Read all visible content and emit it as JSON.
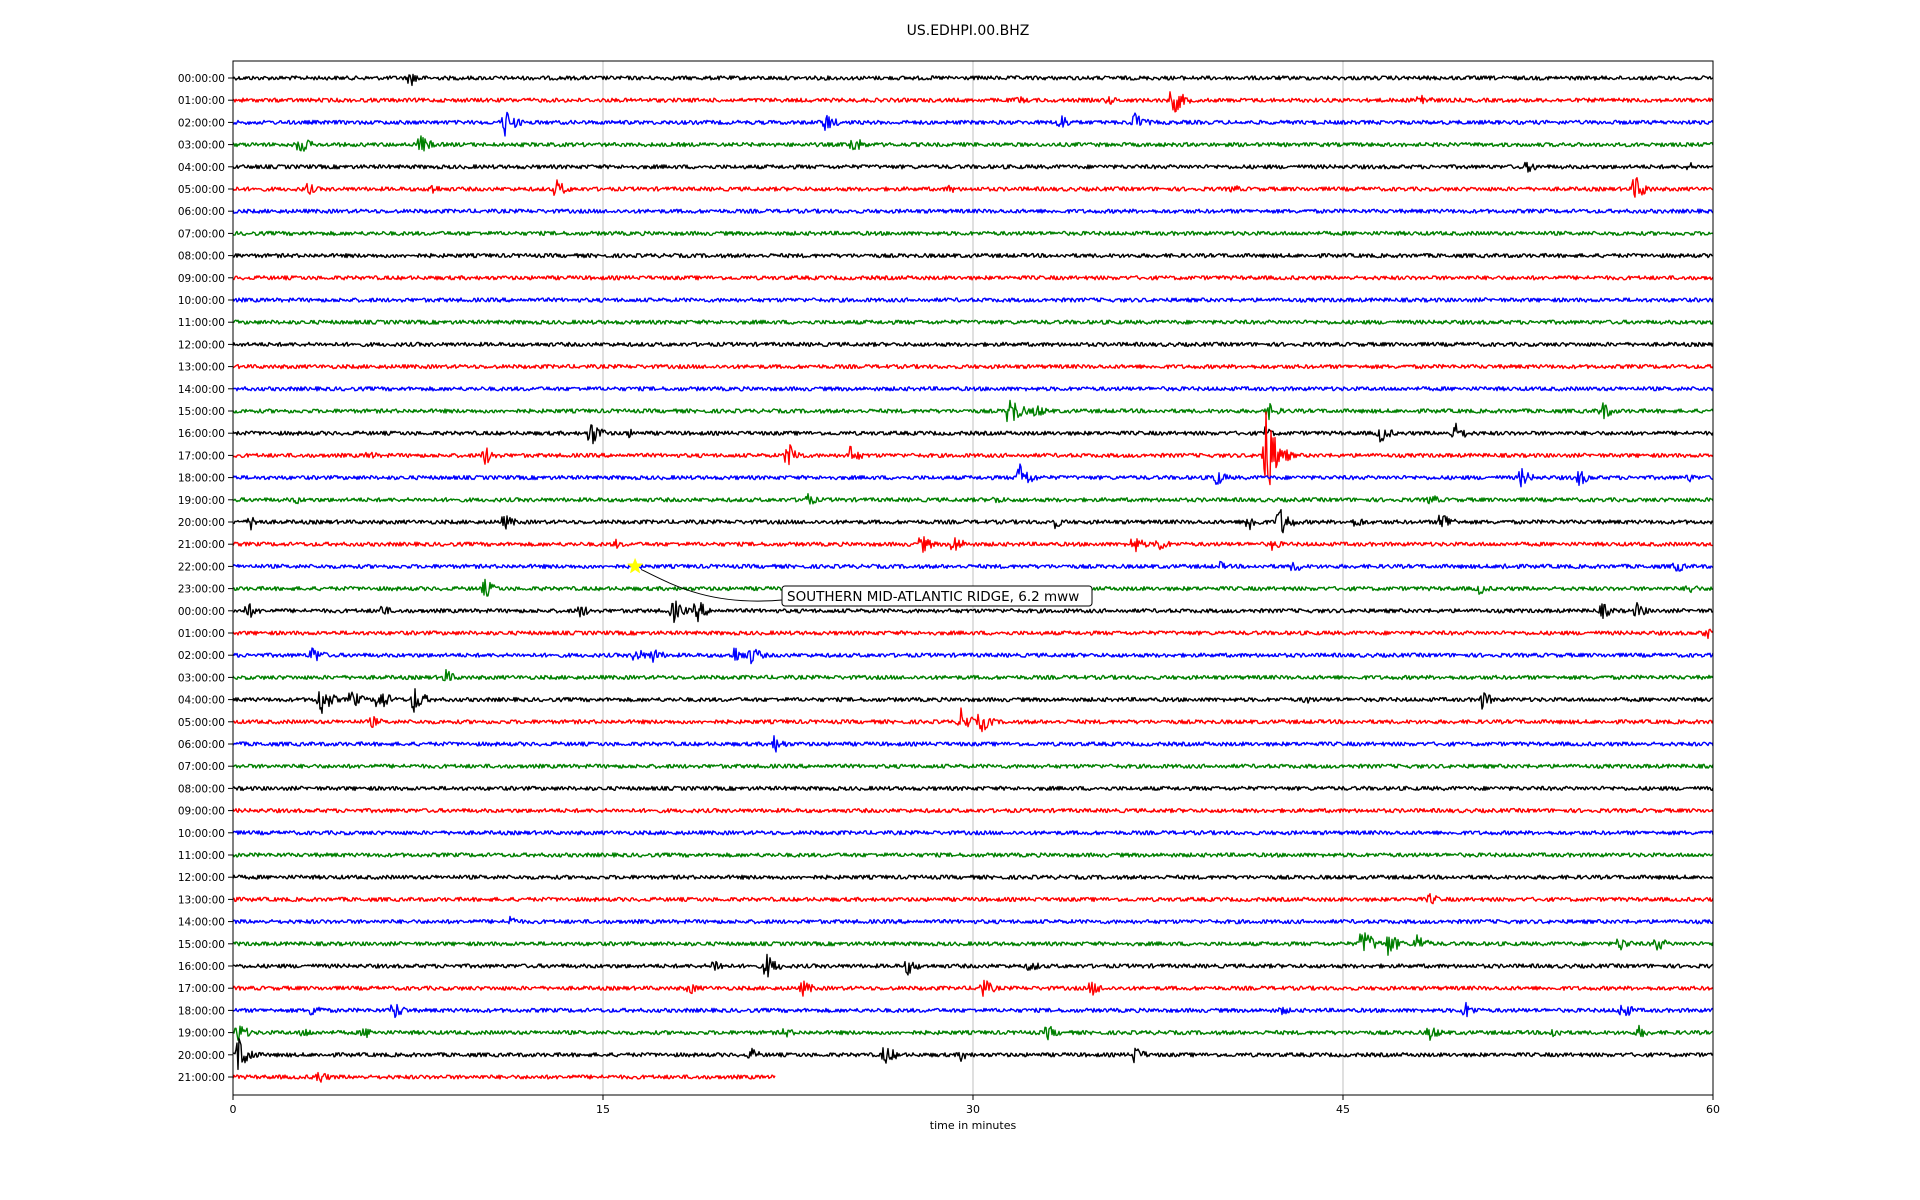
{
  "chart_data": {
    "type": "line",
    "title": "US.EDHPI.00.BHZ",
    "xlabel": "time in minutes",
    "xlim": [
      0,
      60
    ],
    "xticks": [
      0,
      15,
      30,
      45,
      60
    ],
    "grid": "vertical",
    "row_labels": [
      "00:00:00",
      "01:00:00",
      "02:00:00",
      "03:00:00",
      "04:00:00",
      "05:00:00",
      "06:00:00",
      "07:00:00",
      "08:00:00",
      "09:00:00",
      "10:00:00",
      "11:00:00",
      "12:00:00",
      "13:00:00",
      "14:00:00",
      "15:00:00",
      "16:00:00",
      "17:00:00",
      "18:00:00",
      "19:00:00",
      "20:00:00",
      "21:00:00",
      "22:00:00",
      "23:00:00",
      "00:00:00",
      "01:00:00",
      "02:00:00",
      "03:00:00",
      "04:00:00",
      "05:00:00",
      "06:00:00",
      "07:00:00",
      "08:00:00",
      "09:00:00",
      "10:00:00",
      "11:00:00",
      "12:00:00",
      "13:00:00",
      "14:00:00",
      "15:00:00",
      "16:00:00",
      "17:00:00",
      "18:00:00",
      "19:00:00",
      "20:00:00",
      "21:00:00"
    ],
    "trace_colors": [
      "#000000",
      "#ff0000",
      "#0000ff",
      "#008000"
    ],
    "last_row_end_minute": 22,
    "events": [
      {
        "row": 0,
        "t": 7.2,
        "a": 0.5
      },
      {
        "row": 1,
        "t": 31.8,
        "a": 0.3
      },
      {
        "row": 1,
        "t": 35.5,
        "a": 0.3
      },
      {
        "row": 1,
        "t": 38.1,
        "a": 0.9
      },
      {
        "row": 1,
        "t": 48.1,
        "a": 0.5
      },
      {
        "row": 2,
        "t": 11.0,
        "a": 0.9
      },
      {
        "row": 2,
        "t": 24.0,
        "a": 0.6
      },
      {
        "row": 2,
        "t": 33.5,
        "a": 0.6
      },
      {
        "row": 2,
        "t": 36.5,
        "a": 0.7
      },
      {
        "row": 3,
        "t": 2.7,
        "a": 0.6
      },
      {
        "row": 3,
        "t": 7.6,
        "a": 0.6
      },
      {
        "row": 3,
        "t": 25.1,
        "a": 0.6
      },
      {
        "row": 4,
        "t": 52.5,
        "a": 0.4
      },
      {
        "row": 4,
        "t": 59.0,
        "a": 0.3
      },
      {
        "row": 5,
        "t": 3.0,
        "a": 0.4
      },
      {
        "row": 5,
        "t": 8.0,
        "a": 0.4
      },
      {
        "row": 5,
        "t": 13.1,
        "a": 0.6
      },
      {
        "row": 5,
        "t": 29.0,
        "a": 0.3
      },
      {
        "row": 5,
        "t": 40.5,
        "a": 0.3
      },
      {
        "row": 5,
        "t": 56.8,
        "a": 0.9
      },
      {
        "row": 15,
        "t": 31.5,
        "a": 1.0
      },
      {
        "row": 15,
        "t": 32.5,
        "a": 0.5
      },
      {
        "row": 15,
        "t": 42.0,
        "a": 0.5
      },
      {
        "row": 15,
        "t": 55.5,
        "a": 0.6
      },
      {
        "row": 16,
        "t": 14.5,
        "a": 0.8
      },
      {
        "row": 16,
        "t": 16.0,
        "a": 0.3
      },
      {
        "row": 16,
        "t": 41.8,
        "a": 0.4
      },
      {
        "row": 16,
        "t": 46.5,
        "a": 0.6
      },
      {
        "row": 16,
        "t": 49.5,
        "a": 0.7
      },
      {
        "row": 17,
        "t": 5.5,
        "a": 0.3
      },
      {
        "row": 17,
        "t": 10.2,
        "a": 0.6
      },
      {
        "row": 17,
        "t": 22.5,
        "a": 0.8
      },
      {
        "row": 17,
        "t": 25.0,
        "a": 0.6
      },
      {
        "row": 17,
        "t": 41.8,
        "a": 3.2
      },
      {
        "row": 18,
        "t": 31.9,
        "a": 0.9
      },
      {
        "row": 18,
        "t": 39.8,
        "a": 0.6
      },
      {
        "row": 18,
        "t": 52.2,
        "a": 0.6
      },
      {
        "row": 18,
        "t": 54.5,
        "a": 0.6
      },
      {
        "row": 18,
        "t": 59.0,
        "a": 0.3
      },
      {
        "row": 19,
        "t": 2.5,
        "a": 0.3
      },
      {
        "row": 19,
        "t": 23.2,
        "a": 0.5
      },
      {
        "row": 19,
        "t": 30.9,
        "a": 0.3
      },
      {
        "row": 19,
        "t": 48.5,
        "a": 0.4
      },
      {
        "row": 20,
        "t": 0.7,
        "a": 0.5
      },
      {
        "row": 20,
        "t": 11.0,
        "a": 0.5
      },
      {
        "row": 20,
        "t": 33.3,
        "a": 0.4
      },
      {
        "row": 20,
        "t": 41.1,
        "a": 0.7
      },
      {
        "row": 20,
        "t": 42.4,
        "a": 1.0
      },
      {
        "row": 20,
        "t": 45.5,
        "a": 0.4
      },
      {
        "row": 20,
        "t": 49.0,
        "a": 0.7
      },
      {
        "row": 21,
        "t": 15.5,
        "a": 0.3
      },
      {
        "row": 21,
        "t": 27.9,
        "a": 0.6
      },
      {
        "row": 21,
        "t": 29.2,
        "a": 0.6
      },
      {
        "row": 21,
        "t": 36.5,
        "a": 0.6
      },
      {
        "row": 21,
        "t": 37.5,
        "a": 0.5
      },
      {
        "row": 21,
        "t": 42.1,
        "a": 0.4
      },
      {
        "row": 22,
        "t": 40.0,
        "a": 0.3
      },
      {
        "row": 22,
        "t": 43.0,
        "a": 0.4
      },
      {
        "row": 22,
        "t": 51.5,
        "a": 0.3
      },
      {
        "row": 22,
        "t": 58.5,
        "a": 0.4
      },
      {
        "row": 23,
        "t": 10.2,
        "a": 0.6
      },
      {
        "row": 23,
        "t": 50.5,
        "a": 0.4
      },
      {
        "row": 23,
        "t": 59.0,
        "a": 0.4
      },
      {
        "row": 24,
        "t": 0.6,
        "a": 0.5
      },
      {
        "row": 24,
        "t": 6.0,
        "a": 0.4
      },
      {
        "row": 24,
        "t": 14.0,
        "a": 0.5
      },
      {
        "row": 24,
        "t": 17.8,
        "a": 0.8
      },
      {
        "row": 24,
        "t": 18.8,
        "a": 0.7
      },
      {
        "row": 24,
        "t": 55.5,
        "a": 0.5
      },
      {
        "row": 24,
        "t": 56.9,
        "a": 0.5
      },
      {
        "row": 25,
        "t": 59.7,
        "a": 0.4
      },
      {
        "row": 26,
        "t": 3.2,
        "a": 0.6
      },
      {
        "row": 26,
        "t": 16.3,
        "a": 0.5
      },
      {
        "row": 26,
        "t": 17.0,
        "a": 0.5
      },
      {
        "row": 26,
        "t": 20.3,
        "a": 0.6
      },
      {
        "row": 26,
        "t": 21.0,
        "a": 0.6
      },
      {
        "row": 27,
        "t": 8.6,
        "a": 0.5
      },
      {
        "row": 28,
        "t": 3.5,
        "a": 1.1
      },
      {
        "row": 28,
        "t": 4.8,
        "a": 0.6
      },
      {
        "row": 28,
        "t": 5.9,
        "a": 0.8
      },
      {
        "row": 28,
        "t": 7.3,
        "a": 0.9
      },
      {
        "row": 28,
        "t": 43.5,
        "a": 0.3
      },
      {
        "row": 28,
        "t": 50.6,
        "a": 0.6
      },
      {
        "row": 29,
        "t": 5.6,
        "a": 0.4
      },
      {
        "row": 29,
        "t": 29.5,
        "a": 0.8
      },
      {
        "row": 29,
        "t": 30.3,
        "a": 0.7
      },
      {
        "row": 30,
        "t": 21.9,
        "a": 0.6
      },
      {
        "row": 37,
        "t": 48.5,
        "a": 0.4
      },
      {
        "row": 38,
        "t": 11.2,
        "a": 0.4
      },
      {
        "row": 39,
        "t": 45.8,
        "a": 1.0
      },
      {
        "row": 39,
        "t": 46.8,
        "a": 0.8
      },
      {
        "row": 39,
        "t": 48.0,
        "a": 0.6
      },
      {
        "row": 39,
        "t": 56.2,
        "a": 0.5
      },
      {
        "row": 39,
        "t": 57.7,
        "a": 0.5
      },
      {
        "row": 40,
        "t": 19.5,
        "a": 0.5
      },
      {
        "row": 40,
        "t": 21.6,
        "a": 0.8
      },
      {
        "row": 40,
        "t": 27.3,
        "a": 0.6
      },
      {
        "row": 40,
        "t": 32.3,
        "a": 0.4
      },
      {
        "row": 41,
        "t": 18.5,
        "a": 0.4
      },
      {
        "row": 41,
        "t": 23.1,
        "a": 0.5
      },
      {
        "row": 41,
        "t": 30.4,
        "a": 0.6
      },
      {
        "row": 41,
        "t": 34.8,
        "a": 0.5
      },
      {
        "row": 42,
        "t": 3.2,
        "a": 0.5
      },
      {
        "row": 42,
        "t": 6.5,
        "a": 0.6
      },
      {
        "row": 42,
        "t": 42.5,
        "a": 0.3
      },
      {
        "row": 42,
        "t": 49.9,
        "a": 0.6
      },
      {
        "row": 42,
        "t": 56.3,
        "a": 0.6
      },
      {
        "row": 43,
        "t": 0.2,
        "a": 0.6
      },
      {
        "row": 43,
        "t": 2.8,
        "a": 0.4
      },
      {
        "row": 43,
        "t": 5.3,
        "a": 0.4
      },
      {
        "row": 43,
        "t": 22.3,
        "a": 0.4
      },
      {
        "row": 43,
        "t": 33.0,
        "a": 0.5
      },
      {
        "row": 43,
        "t": 48.5,
        "a": 0.5
      },
      {
        "row": 43,
        "t": 53.5,
        "a": 0.4
      },
      {
        "row": 43,
        "t": 57.0,
        "a": 0.4
      },
      {
        "row": 44,
        "t": 0.2,
        "a": 1.2
      },
      {
        "row": 44,
        "t": 21.0,
        "a": 0.4
      },
      {
        "row": 44,
        "t": 26.4,
        "a": 0.7
      },
      {
        "row": 44,
        "t": 29.5,
        "a": 0.4
      },
      {
        "row": 44,
        "t": 36.5,
        "a": 0.6
      },
      {
        "row": 45,
        "t": 3.4,
        "a": 0.5
      }
    ],
    "annotation": {
      "text": "SOUTHERN MID-ATLANTIC RIDGE, 6.2 mww",
      "row": 22,
      "t": 16.3,
      "marker_color": "#ffff00"
    }
  }
}
